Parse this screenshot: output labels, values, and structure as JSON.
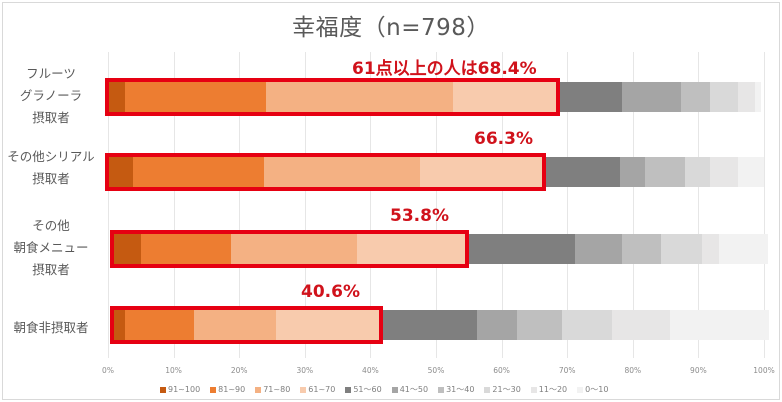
{
  "chart_data": {
    "type": "bar",
    "orientation": "horizontal",
    "stacked": true,
    "percent": true,
    "title": "幸福度（n=798）",
    "xlabel": "",
    "ylabel": "",
    "xlim": [
      0,
      100
    ],
    "x_ticks": [
      "0%",
      "10%",
      "20%",
      "30%",
      "40%",
      "50%",
      "60%",
      "70%",
      "80%",
      "90%",
      "100%"
    ],
    "grid": true,
    "legend_position": "bottom",
    "categories": [
      "フルーツ グラノーラ 摂取者",
      "その他シリアル 摂取者",
      "その他 朝食メニュー 摂取者",
      "朝食非摂取者"
    ],
    "series": [
      {
        "name": "91~100",
        "color": "#c55a11",
        "values": [
          2.6,
          3.8,
          4.3,
          1.8
        ]
      },
      {
        "name": "81~90",
        "color": "#ed7d31",
        "values": [
          21.5,
          20.0,
          13.7,
          10.5
        ]
      },
      {
        "name": "71~80",
        "color": "#f4b183",
        "values": [
          28.5,
          23.8,
          19.2,
          12.5
        ]
      },
      {
        "name": "61~70",
        "color": "#f8cbad",
        "values": [
          15.8,
          18.7,
          16.6,
          15.8
        ]
      },
      {
        "name": "51～60",
        "color": "#7f7f7f",
        "values": [
          9.9,
          11.7,
          16.6,
          14.8
        ]
      },
      {
        "name": "41～50",
        "color": "#a5a5a5",
        "values": [
          9.0,
          3.8,
          7.2,
          6.1
        ]
      },
      {
        "name": "31～40",
        "color": "#bfbfbf",
        "values": [
          4.4,
          6.2,
          5.9,
          6.9
        ]
      },
      {
        "name": "21～30",
        "color": "#d9d9d9",
        "values": [
          4.3,
          3.7,
          6.3,
          7.6
        ]
      },
      {
        "name": "11～20",
        "color": "#e7e6e6",
        "values": [
          2.7,
          4.4,
          2.6,
          8.8
        ]
      },
      {
        "name": "0～10",
        "color": "#f2f2f2",
        "values": [
          0.9,
          3.9,
          7.4,
          15.2
        ]
      }
    ],
    "annotations": [
      {
        "category": "フルーツ グラノーラ 摂取者",
        "text": "61点以上の人は68.4%",
        "value": 68.4
      },
      {
        "category": "その他シリアル 摂取者",
        "text": "66.3%",
        "value": 66.3
      },
      {
        "category": "その他 朝食メニュー 摂取者",
        "text": "53.8%",
        "value": 53.8
      },
      {
        "category": "朝食非摂取者",
        "text": "40.6%",
        "value": 40.6
      }
    ],
    "highlight_color": "#e60012"
  },
  "title": "幸福度（n=798）",
  "rows": [
    {
      "label_lines": [
        "フルーツ",
        "グラノーラ",
        "摂取者"
      ],
      "annotation": "61点以上の人は68.4%"
    },
    {
      "label_lines": [
        "その他シリアル",
        "摂取者"
      ],
      "annotation": "66.3%"
    },
    {
      "label_lines": [
        "その他",
        "朝食メニュー",
        "摂取者"
      ],
      "annotation": "53.8%"
    },
    {
      "label_lines": [
        "朝食非摂取者"
      ],
      "annotation": "40.6%"
    }
  ],
  "ticks": [
    "0%",
    "10%",
    "20%",
    "30%",
    "40%",
    "50%",
    "60%",
    "70%",
    "80%",
    "90%",
    "100%"
  ],
  "legend": [
    "91~100",
    "81~90",
    "71~80",
    "61~70",
    "51～60",
    "41～50",
    "31～40",
    "21～30",
    "11～20",
    "0～10"
  ]
}
